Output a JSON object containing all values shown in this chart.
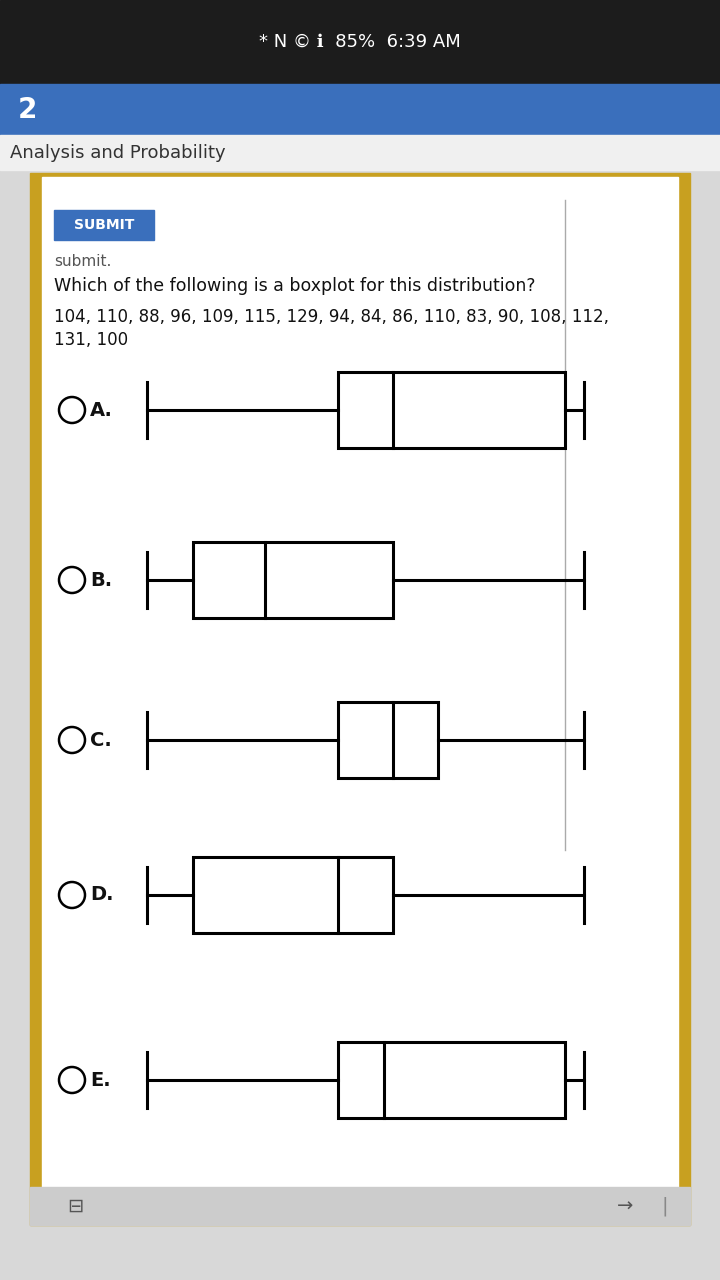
{
  "title_text": "Which of the following is a boxplot for this distribution?",
  "data_line1": "104, 110, 88, 96, 109, 115, 129, 94, 84, 86, 110, 83, 90, 108, 112,",
  "data_line2": "131, 100",
  "submit_label": "SUBMIT",
  "header_label": "Analysis and Probability",
  "page_num": "2",
  "boxplots": [
    {
      "min": 83,
      "q1": 104,
      "median": 110,
      "q3": 129,
      "max": 131,
      "label": "A."
    },
    {
      "min": 83,
      "q1": 88,
      "median": 96,
      "q3": 110,
      "max": 131,
      "label": "B."
    },
    {
      "min": 83,
      "q1": 104,
      "median": 110,
      "q3": 115,
      "max": 131,
      "label": "C."
    },
    {
      "min": 83,
      "q1": 88,
      "median": 104,
      "q3": 110,
      "max": 131,
      "label": "D."
    },
    {
      "min": 83,
      "q1": 104,
      "median": 109,
      "q3": 129,
      "max": 131,
      "label": "E."
    }
  ],
  "xmin": 80,
  "xmax": 135,
  "header_bg": "#3a6fbc",
  "submit_bg": "#3a6fbc",
  "outer_border_color": "#c8a020",
  "page_bg": "#d8d8d8",
  "content_bg": "#ffffff",
  "subheader_bg": "#f0f0f0"
}
